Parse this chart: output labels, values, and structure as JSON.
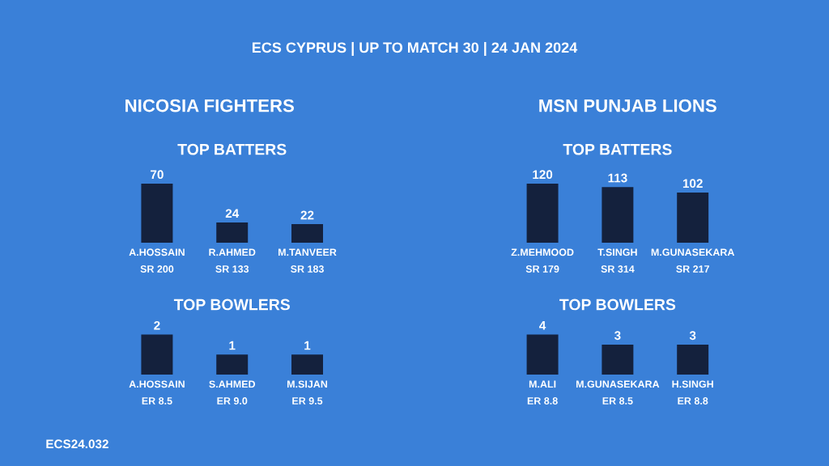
{
  "chart_data": [
    {
      "type": "other",
      "title": "ECS CYPRUS | UP TO MATCH 30 | 24 JAN 2024",
      "annotations": [
        "NICOSIA FIGHTERS",
        "MSN PUNJAB LIONS",
        "ECS24.032"
      ]
    },
    {
      "type": "bar",
      "title": "TOP BATTERS",
      "categories": [
        "A.HOSSAIN\nSR 200",
        "R.AHMED\nSR 133",
        "M.TANVEER\nSR 183"
      ],
      "values": [
        70,
        24,
        22
      ],
      "color": "#14213d",
      "data_labels": true
    },
    {
      "type": "bar",
      "title": "TOP BATTERS",
      "categories": [
        "Z.MEHMOOD\nSR 179",
        "T.SINGH\nSR 314",
        "M.GUNASEKARA\nSR 217"
      ],
      "values": [
        120,
        113,
        102
      ],
      "color": "#14213d",
      "data_labels": true
    },
    {
      "type": "bar",
      "title": "TOP BOWLERS",
      "categories": [
        "A.HOSSAIN\nER 8.5",
        "S.AHMED\nER 9.0",
        "M.SIJAN\nER 9.5"
      ],
      "values": [
        2,
        1,
        1
      ],
      "color": "#14213d",
      "data_labels": true
    },
    {
      "type": "bar",
      "title": "TOP BOWLERS",
      "categories": [
        "M.ALI\nER 8.8",
        "M.GUNASEKARA\nER 8.5",
        "H.SINGH\nER 8.8"
      ],
      "values": [
        4,
        3,
        3
      ],
      "color": "#14213d",
      "data_labels": true
    }
  ]
}
